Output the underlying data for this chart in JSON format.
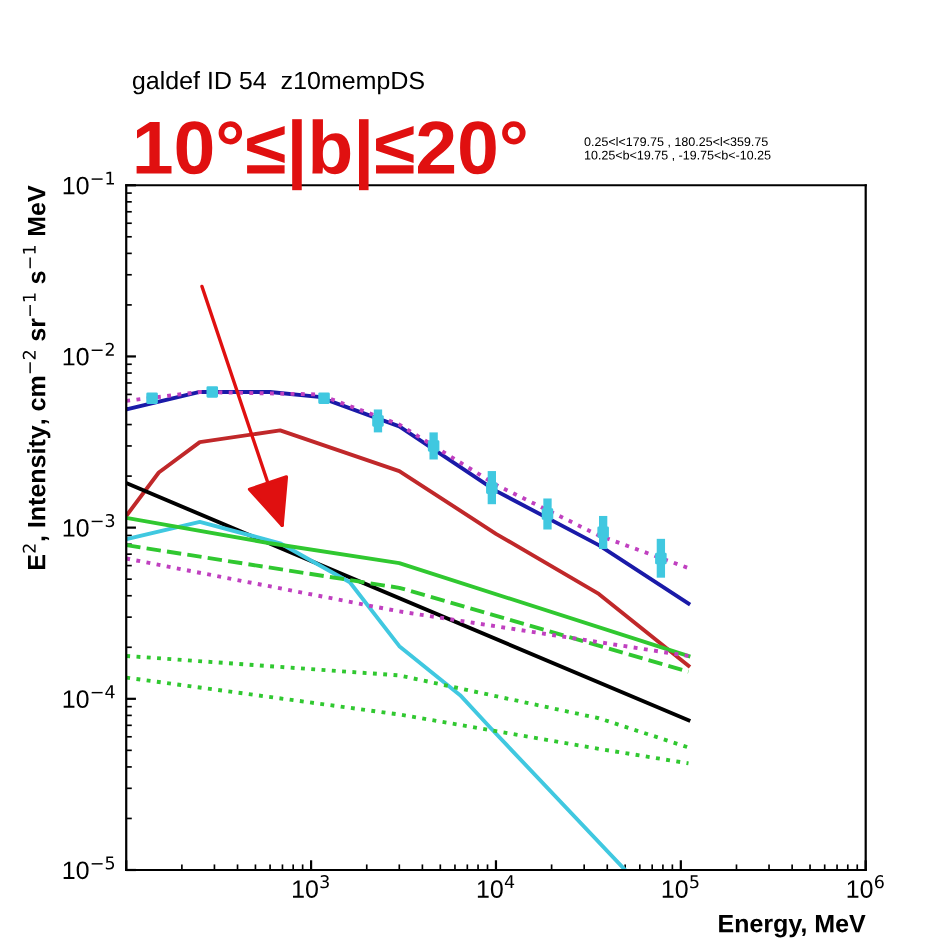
{
  "chart_data": {
    "type": "line",
    "title": "galdef ID 54  z10mempDS",
    "subtitle": "10°≤|b|≤20°",
    "annotations": [
      "0.25<l<179.75 , 180.25<l<359.75\n10.25<b<19.75 , -19.75<b<-10.25"
    ],
    "xlabel": "Energy, MeV",
    "ylabel": "E$^{2}$, Intensity, cm$^{−2}$ sr$^{−1}$ s$^{−1}$ MeV",
    "log": "xy",
    "grid": false,
    "legend": false,
    "xlim": [
      100,
      1000000
    ],
    "ylim": [
      1e-05,
      0.1
    ],
    "xticks": [
      {
        "value": 100,
        "label": null
      },
      {
        "value": 1000,
        "label": "10$^{3}$"
      },
      {
        "value": 10000,
        "label": "10$^{4}$"
      },
      {
        "value": 100000,
        "label": "10$^{5}$"
      },
      {
        "value": 1000000,
        "label": "10$^{6}$"
      }
    ],
    "yticks": [
      {
        "value": 1e-05,
        "label": "10$^{−5}$"
      },
      {
        "value": 0.0001,
        "label": "10$^{−4}$"
      },
      {
        "value": 0.001,
        "label": "10$^{−3}$"
      },
      {
        "value": 0.01,
        "label": "10$^{−2}$"
      },
      {
        "value": 0.1,
        "label": "10$^{−1}$"
      }
    ],
    "series": [
      {
        "color": "#1a1aa8",
        "line_style": "solid",
        "x": [
          100,
          250,
          600,
          1100,
          3000,
          10000,
          36000,
          110000
        ],
        "values": [
          0.0049,
          0.0062,
          0.0062,
          0.0058,
          0.0039,
          0.00164,
          0.00079,
          0.00036
        ]
      },
      {
        "color": "#c040c0",
        "line_style": "dotted",
        "x": [
          100,
          250,
          1100,
          3000,
          10000,
          36000,
          110000
        ],
        "values": [
          0.0055,
          0.0062,
          0.006,
          0.004,
          0.00178,
          0.0009,
          0.00058
        ]
      },
      {
        "color": "#c0282a",
        "line_style": "solid",
        "x": [
          100,
          150,
          250,
          680,
          3000,
          10000,
          36000,
          110000
        ],
        "values": [
          0.00117,
          0.0021,
          0.00316,
          0.0037,
          0.00214,
          0.00092,
          0.00041,
          0.000156
        ]
      },
      {
        "color": "#000000",
        "line_style": "solid",
        "x": [
          100,
          110000
        ],
        "values": [
          0.00182,
          7.5e-05
        ]
      },
      {
        "color": "#40c8e0",
        "line_style": "solid",
        "x": [
          100,
          250,
          680,
          1620,
          3000,
          6400,
          9300,
          50000
        ],
        "values": [
          0.000855,
          0.00108,
          0.00081,
          0.00048,
          0.000203,
          0.000105,
          6.8e-05,
          1e-05
        ]
      },
      {
        "color": "#30c830",
        "line_style": "solid",
        "x": [
          100,
          600,
          3000,
          110000
        ],
        "values": [
          0.00114,
          0.00081,
          0.00062,
          0.000178
        ]
      },
      {
        "color": "#30c830",
        "line_style": "dashed",
        "x": [
          100,
          3000,
          110000
        ],
        "values": [
          0.00079,
          0.000445,
          0.000144
        ]
      },
      {
        "color": "#c040c0",
        "line_style": "dotted",
        "x": [
          100,
          3000,
          110000
        ],
        "values": [
          0.00066,
          0.000324,
          0.000178
        ]
      },
      {
        "color": "#30c830",
        "line_style": "dotted",
        "x": [
          100,
          3000,
          36000,
          110000
        ],
        "values": [
          0.000178,
          0.000137,
          7.7e-05,
          5.2e-05
        ]
      },
      {
        "color": "#30c830",
        "line_style": "dotted",
        "x": [
          100,
          3000,
          36000,
          110000
        ],
        "values": [
          0.000133,
          8.1e-05,
          5.1e-05,
          4.2e-05
        ]
      },
      {
        "type": "scatter",
        "marker": "square",
        "color": "#40c8e0",
        "x": [
          138,
          292,
          1175,
          2300,
          4600,
          9500,
          19000,
          38000,
          78000
        ],
        "values": [
          0.0057,
          0.0062,
          0.0057,
          0.0042,
          0.003,
          0.0017,
          0.0012,
          0.00094,
          0.00066
        ],
        "errors": [
          [
            0.0053,
            0.0061
          ],
          [
            0.0058,
            0.0066
          ],
          [
            0.0053,
            0.0061
          ],
          [
            0.0036,
            0.0049
          ],
          [
            0.0025,
            0.0036
          ],
          [
            0.00137,
            0.00214
          ],
          [
            0.000975,
            0.00148
          ],
          [
            0.00075,
            0.00117
          ],
          [
            0.00051,
            0.00086
          ]
        ]
      }
    ]
  }
}
